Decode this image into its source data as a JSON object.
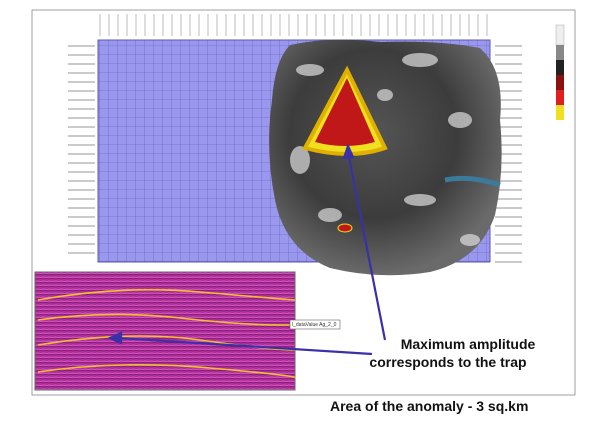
{
  "annotation": {
    "line1": "Maximum amplitude",
    "line2": "corresponds to the trap"
  },
  "caption": "Area of the anomaly - 3 sq.km",
  "map_label": "l_dataValue Ag_2_0"
}
